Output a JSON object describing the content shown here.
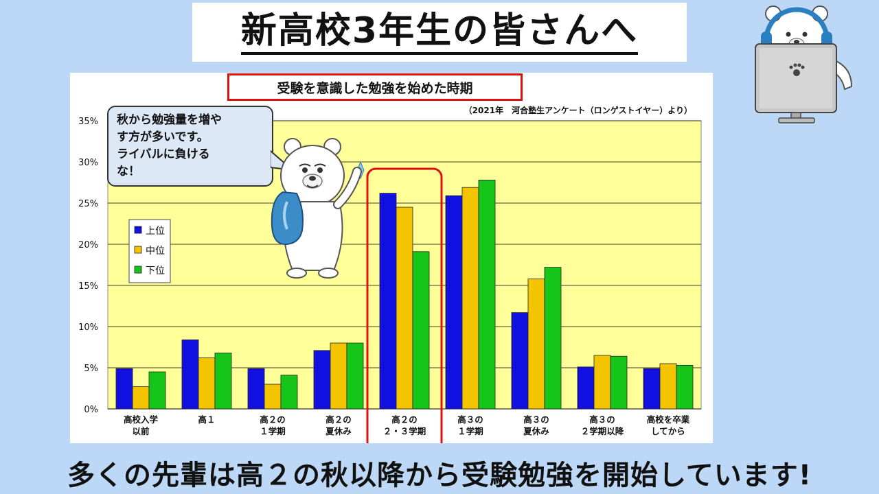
{
  "header": {
    "title": "新高校3年生の皆さんへ"
  },
  "speech": {
    "lines": [
      "秋から勉強量を増や",
      "す方が多いです。",
      "ライバルに負ける",
      "な！"
    ]
  },
  "footer": {
    "message": "多くの先輩は高２の秋以降から受験勉強を開始しています!"
  },
  "colors": {
    "upper": "#1010e0",
    "middle": "#f5c400",
    "lower": "#16c41a",
    "plot_bg": "#ffff99",
    "highlight": "#e01010"
  },
  "chart_data": {
    "type": "bar",
    "title": "受験を意識した勉強を始めた時期",
    "source": "（2021年　河合塾生アンケート（ロンゲストイヤー）より）",
    "categories": [
      [
        "高校入学",
        "以前"
      ],
      [
        "高１"
      ],
      [
        "高２の",
        "１学期"
      ],
      [
        "高２の",
        "夏休み"
      ],
      [
        "高２の",
        "２・３学期"
      ],
      [
        "高３の",
        "１学期"
      ],
      [
        "高３の",
        "夏休み"
      ],
      [
        "高３の",
        "２学期以降"
      ],
      [
        "高校を卒業",
        "してから"
      ]
    ],
    "series": [
      {
        "name": "上位",
        "values": [
          4.9,
          8.4,
          4.9,
          7.1,
          26.2,
          25.9,
          11.7,
          5.1,
          4.9
        ]
      },
      {
        "name": "中位",
        "values": [
          2.7,
          6.2,
          3.0,
          8.0,
          24.5,
          26.9,
          15.8,
          6.5,
          5.5
        ]
      },
      {
        "name": "下位",
        "values": [
          4.5,
          6.8,
          4.1,
          8.0,
          19.1,
          27.8,
          17.2,
          6.4,
          5.3
        ]
      }
    ],
    "yticks": [
      "0%",
      "5%",
      "10%",
      "15%",
      "20%",
      "25%",
      "30%",
      "35%"
    ],
    "ylim": [
      0,
      35
    ],
    "highlight_category_index": 4,
    "legend_position": "left",
    "grid": true
  }
}
